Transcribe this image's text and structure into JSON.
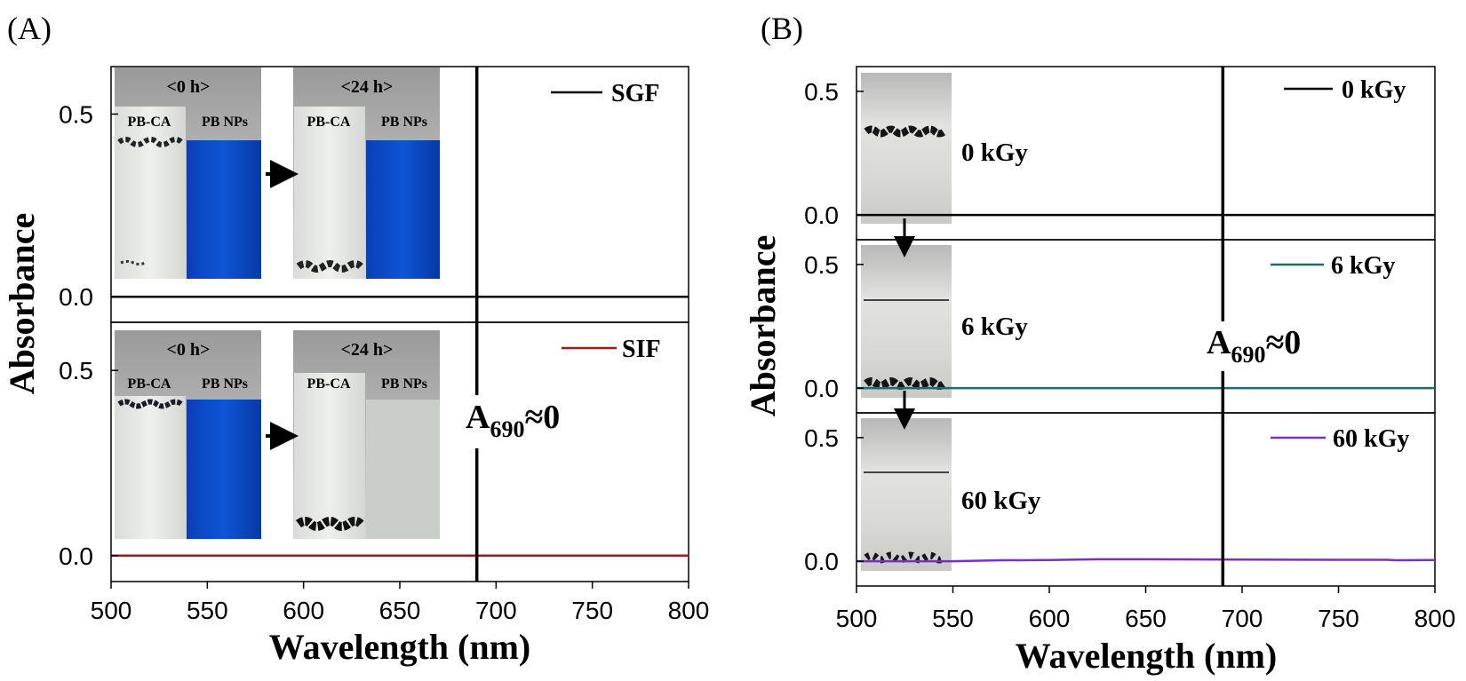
{
  "chart_data": [
    {
      "panel": "(A)",
      "type": "line",
      "xlabel": "Wavelength (nm)",
      "ylabel": "Absorbance",
      "xlim": [
        500,
        800
      ],
      "xticks": [
        500,
        550,
        600,
        650,
        700,
        750,
        800
      ],
      "annotation": {
        "text_main": "A",
        "text_sub": "690",
        "text_rel": "≈0",
        "x": 690
      },
      "subplots": [
        {
          "ylim": [
            -0.07,
            0.63
          ],
          "yticks": [
            0.0,
            0.5
          ],
          "ytick_labels": [
            "0.0",
            "0.5"
          ],
          "series": [
            {
              "name": "SGF",
              "color": "#000000",
              "x": [
                500,
                800
              ],
              "y": [
                0.0,
                0.0
              ]
            }
          ],
          "inset": {
            "before_label": "<0 h>",
            "after_label": "<24 h>",
            "tube_labels": [
              "PB-CA",
              "PB NPs",
              "PB-CA",
              "PB NPs"
            ]
          }
        },
        {
          "ylim": [
            -0.07,
            0.63
          ],
          "yticks": [
            0.0,
            0.5
          ],
          "ytick_labels": [
            "0.0",
            "0.5"
          ],
          "series": [
            {
              "name": "SIF",
              "color": "#9b1c1c",
              "x": [
                500,
                800
              ],
              "y": [
                0.0,
                0.0
              ]
            }
          ],
          "inset": {
            "before_label": "<0 h>",
            "after_label": "<24 h>",
            "tube_labels": [
              "PB-CA",
              "PB NPs",
              "PB-CA",
              "PB NPs"
            ]
          }
        }
      ]
    },
    {
      "panel": "(B)",
      "type": "line",
      "xlabel": "Wavelength (nm)",
      "ylabel": "Absorbance",
      "xlim": [
        500,
        800
      ],
      "xticks": [
        500,
        550,
        600,
        650,
        700,
        750,
        800
      ],
      "annotation": {
        "text_main": "A",
        "text_sub": "690",
        "text_rel": "≈0",
        "x": 690
      },
      "subplots": [
        {
          "ylim": [
            -0.1,
            0.6
          ],
          "yticks": [
            0.0,
            0.5
          ],
          "ytick_labels": [
            "0.0",
            "0.5"
          ],
          "series": [
            {
              "name": "0 kGy",
              "color": "#000000",
              "x": [
                500,
                800
              ],
              "y": [
                0.0,
                0.0
              ]
            }
          ],
          "inset_label": "0 kGy"
        },
        {
          "ylim": [
            -0.1,
            0.6
          ],
          "yticks": [
            0.0,
            0.5
          ],
          "ytick_labels": [
            "0.0",
            "0.5"
          ],
          "series": [
            {
              "name": "6 kGy",
              "color": "#1e6b6b",
              "x": [
                500,
                800
              ],
              "y": [
                0.0,
                0.0
              ]
            }
          ],
          "inset_label": "6 kGy"
        },
        {
          "ylim": [
            -0.1,
            0.6
          ],
          "yticks": [
            0.0,
            0.5
          ],
          "ytick_labels": [
            "0.0",
            "0.5"
          ],
          "series": [
            {
              "name": "60 kGy",
              "color": "#7a2ed0",
              "x": [
                500,
                550,
                575,
                600,
                625,
                650,
                700,
                750,
                775,
                780,
                800
              ],
              "y": [
                0.0,
                0.0,
                0.004,
                0.005,
                0.008,
                0.008,
                0.007,
                0.006,
                0.006,
                0.004,
                0.005
              ]
            }
          ],
          "inset_label": "60 kGy"
        }
      ]
    }
  ]
}
